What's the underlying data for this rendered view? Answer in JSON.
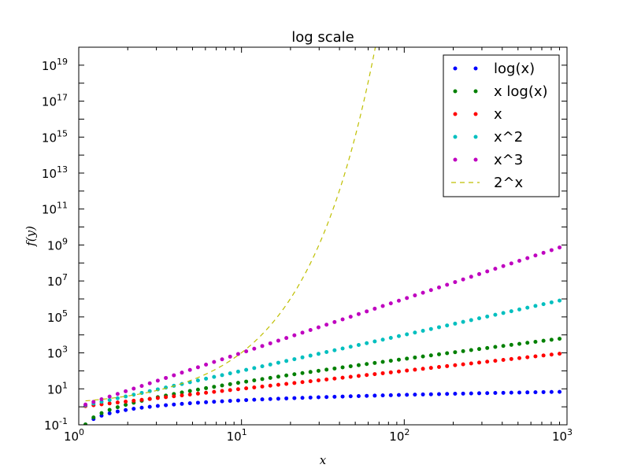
{
  "chart_data": {
    "type": "scatter",
    "title": "log scale",
    "xlabel": "x",
    "ylabel": "f(y)",
    "xscale": "log",
    "yscale": "log",
    "xlim": [
      1,
      1000
    ],
    "ylim": [
      0.1,
      100000000000000000000
    ],
    "x_ticks": [
      {
        "value": 1,
        "base": "10",
        "exp": "0"
      },
      {
        "value": 10,
        "base": "10",
        "exp": "1"
      },
      {
        "value": 100,
        "base": "10",
        "exp": "2"
      },
      {
        "value": 1000,
        "base": "10",
        "exp": "3"
      }
    ],
    "y_ticks": [
      {
        "value": 0.1,
        "base": "10",
        "exp": "-1"
      },
      {
        "value": 10,
        "base": "10",
        "exp": "1"
      },
      {
        "value": 1000,
        "base": "10",
        "exp": "3"
      },
      {
        "value": 100000,
        "base": "10",
        "exp": "5"
      },
      {
        "value": 10000000,
        "base": "10",
        "exp": "7"
      },
      {
        "value": 1000000000,
        "base": "10",
        "exp": "9"
      },
      {
        "value": 100000000000,
        "base": "10",
        "exp": "11"
      },
      {
        "value": 10000000000000,
        "base": "10",
        "exp": "13"
      },
      {
        "value": 1000000000000000,
        "base": "10",
        "exp": "15"
      },
      {
        "value": 100000000000000000,
        "base": "10",
        "exp": "17"
      },
      {
        "value": 10000000000000000000,
        "base": "10",
        "exp": "19"
      }
    ],
    "x_range": {
      "start": 1.1,
      "stop": 900,
      "points": 60
    },
    "series": [
      {
        "name": "log(x)",
        "function": "log",
        "style": "dots",
        "color": "#0000ff"
      },
      {
        "name": "x log(x)",
        "function": "xlog",
        "style": "dots",
        "color": "#008000"
      },
      {
        "name": "x",
        "function": "linear",
        "style": "dots",
        "color": "#ff0000"
      },
      {
        "name": "x^2",
        "function": "square",
        "style": "dots",
        "color": "#00bfbf"
      },
      {
        "name": "x^3",
        "function": "cube",
        "style": "dots",
        "color": "#bf00bf"
      },
      {
        "name": "2^x",
        "function": "exp2",
        "style": "dashed",
        "color": "#bfbf00"
      }
    ],
    "grid": false,
    "legend_position": "top-right"
  }
}
